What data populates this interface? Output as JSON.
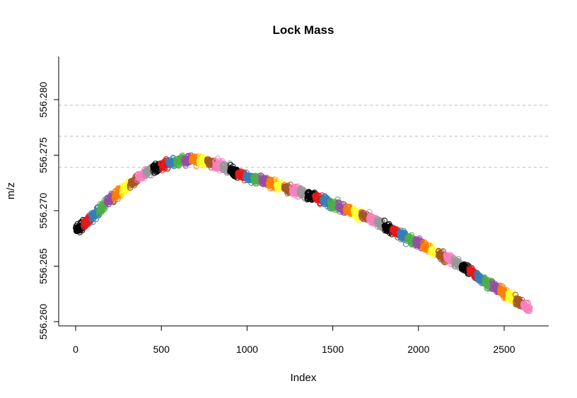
{
  "chart_data": {
    "type": "scatter",
    "title": "Lock Mass",
    "xlabel": "Index",
    "ylabel": "m/z",
    "xlim": [
      0,
      2700
    ],
    "ylim": [
      556.26,
      556.282
    ],
    "x_ticks": [
      0,
      500,
      1000,
      1500,
      2000,
      2500
    ],
    "x_tick_labels": [
      "0",
      "500",
      "1000",
      "1500",
      "2000",
      "2500"
    ],
    "y_ticks": [
      556.26,
      556.265,
      556.27,
      556.275,
      556.28
    ],
    "y_tick_labels": [
      "556.260",
      "556.265",
      "556.270",
      "556.275",
      "556.280"
    ],
    "reference_lines": [
      556.2795,
      556.2767,
      556.2739
    ],
    "marker": "open-circle",
    "n_points": 2650,
    "color_cycle": [
      "#000000",
      "#e41a1c",
      "#377eb8",
      "#4daf4a",
      "#984ea3",
      "#ff7f00",
      "#ffff33",
      "#a65628",
      "#f781bf",
      "#999999"
    ],
    "group_size": 45,
    "trend": [
      {
        "x": 0,
        "y": 556.2682
      },
      {
        "x": 100,
        "y": 556.2695
      },
      {
        "x": 200,
        "y": 556.271
      },
      {
        "x": 300,
        "y": 556.2722
      },
      {
        "x": 400,
        "y": 556.2733
      },
      {
        "x": 500,
        "y": 556.2741
      },
      {
        "x": 600,
        "y": 556.2745
      },
      {
        "x": 700,
        "y": 556.2746
      },
      {
        "x": 800,
        "y": 556.2743
      },
      {
        "x": 900,
        "y": 556.2737
      },
      {
        "x": 1000,
        "y": 556.273
      },
      {
        "x": 1100,
        "y": 556.2727
      },
      {
        "x": 1200,
        "y": 556.2722
      },
      {
        "x": 1300,
        "y": 556.2717
      },
      {
        "x": 1400,
        "y": 556.2712
      },
      {
        "x": 1500,
        "y": 556.2706
      },
      {
        "x": 1600,
        "y": 556.27
      },
      {
        "x": 1700,
        "y": 556.2694
      },
      {
        "x": 1800,
        "y": 556.2686
      },
      {
        "x": 1900,
        "y": 556.2678
      },
      {
        "x": 2000,
        "y": 556.2671
      },
      {
        "x": 2100,
        "y": 556.2662
      },
      {
        "x": 2200,
        "y": 556.2655
      },
      {
        "x": 2300,
        "y": 556.2646
      },
      {
        "x": 2400,
        "y": 556.2635
      },
      {
        "x": 2500,
        "y": 556.2626
      },
      {
        "x": 2600,
        "y": 556.2616
      },
      {
        "x": 2650,
        "y": 556.2612
      }
    ]
  }
}
